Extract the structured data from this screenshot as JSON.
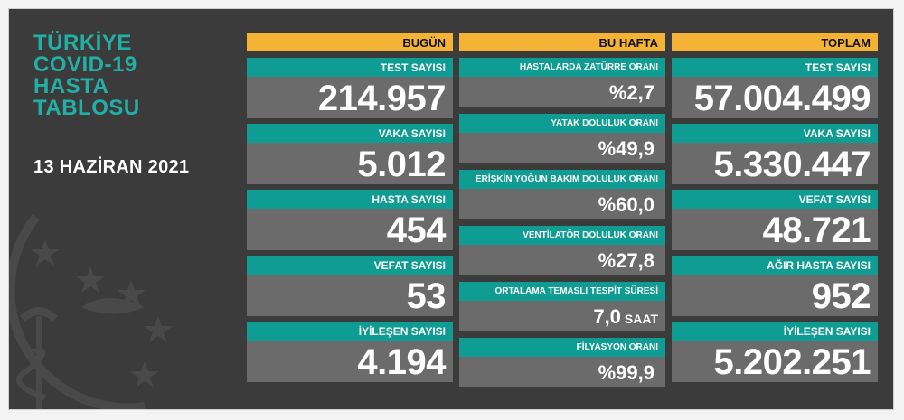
{
  "title_lines": [
    "TÜRKİYE",
    "COVID-19",
    "HASTA",
    "TABLOSU"
  ],
  "date": "13 HAZİRAN 2021",
  "columns": {
    "today": {
      "header": "BUGÜN",
      "cards": [
        {
          "label": "TEST SAYISI",
          "value": "214.957"
        },
        {
          "label": "VAKA SAYISI",
          "value": "5.012"
        },
        {
          "label": "HASTA SAYISI",
          "value": "454"
        },
        {
          "label": "VEFAT SAYISI",
          "value": "53"
        },
        {
          "label": "İYİLEŞEN SAYISI",
          "value": "4.194"
        }
      ]
    },
    "week": {
      "header": "BU HAFTA",
      "cards": [
        {
          "label": "HASTALARDA ZATÜRRE ORANI",
          "value": "%2,7",
          "unit": ""
        },
        {
          "label": "YATAK DOLULUK ORANI",
          "value": "%49,9",
          "unit": ""
        },
        {
          "label": "ERİŞKİN YOĞUN BAKIM DOLULUK ORANI",
          "value": "%60,0",
          "unit": ""
        },
        {
          "label": "VENTİLATÖR DOLULUK ORANI",
          "value": "%27,8",
          "unit": ""
        },
        {
          "label": "ORTALAMA TEMASLI TESPİT SÜRESİ",
          "value": "7,0",
          "unit": "SAAT"
        },
        {
          "label": "FİLYASYON ORANI",
          "value": "%99,9",
          "unit": ""
        }
      ]
    },
    "total": {
      "header": "TOPLAM",
      "cards": [
        {
          "label": "TEST SAYISI",
          "value": "57.004.499"
        },
        {
          "label": "VAKA SAYISI",
          "value": "5.330.447"
        },
        {
          "label": "VEFAT SAYISI",
          "value": "48.721"
        },
        {
          "label": "AĞIR HASTA SAYISI",
          "value": "952"
        },
        {
          "label": "İYİLEŞEN SAYISI",
          "value": "5.202.251"
        }
      ]
    }
  },
  "colors": {
    "background": "#3c3b3c",
    "accent_teal": "#0f9d93",
    "header_orange": "#f5b335",
    "value_gray": "#6c6b6b"
  }
}
